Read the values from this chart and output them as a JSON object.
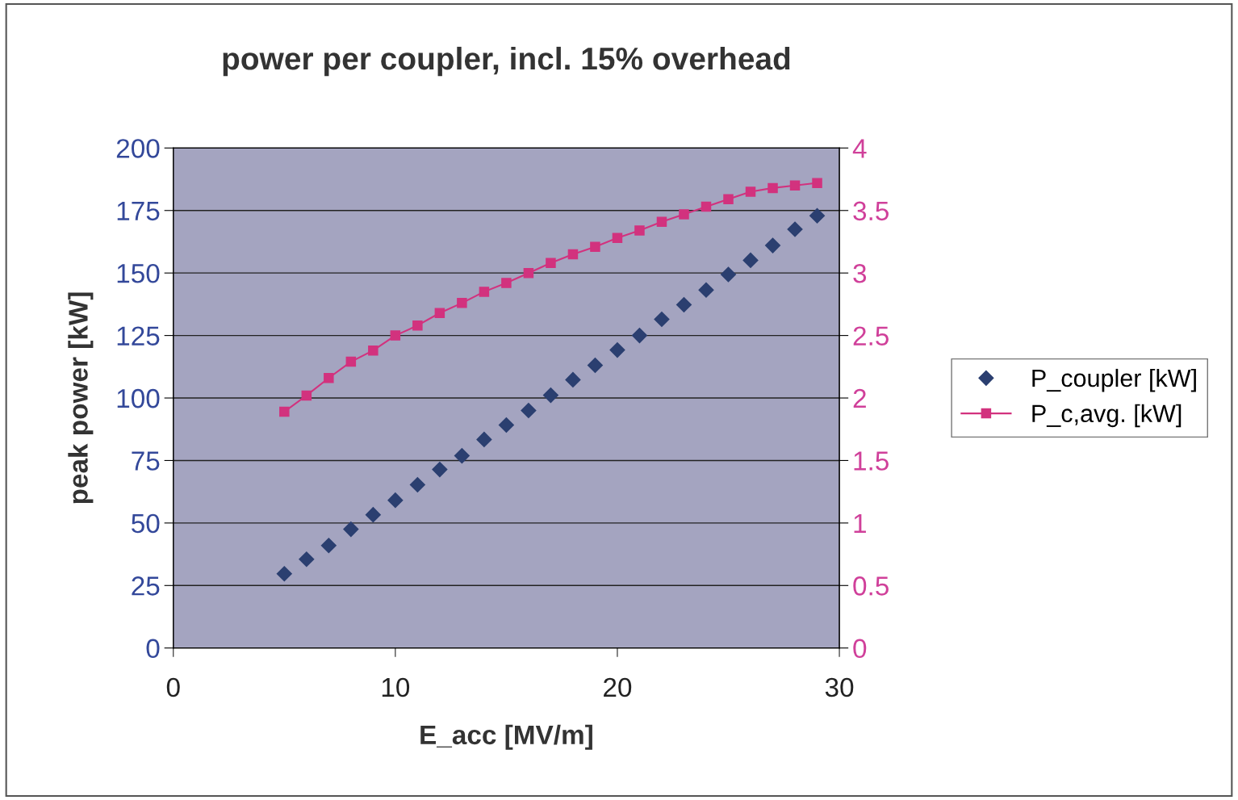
{
  "chart_data": {
    "type": "scatter",
    "title": "power per coupler, incl. 15% overhead",
    "xlabel": "E_acc [MV/m]",
    "ylabel": "peak power [kW]",
    "x": [
      5,
      6,
      7,
      8,
      9,
      10,
      11,
      12,
      13,
      14,
      15,
      16,
      17,
      18,
      19,
      20,
      21,
      22,
      23,
      24,
      25,
      26,
      27,
      28,
      29
    ],
    "series": [
      {
        "name": "P_coupler [kW]",
        "marker": "diamond",
        "color": "#2b3f70",
        "values": [
          29.7,
          35.5,
          41.0,
          47.5,
          53.3,
          59.1,
          65.3,
          71.4,
          76.9,
          83.4,
          89.2,
          95.0,
          101.1,
          107.3,
          113.1,
          119.2,
          125.0,
          131.5,
          137.3,
          143.2,
          149.4,
          155.1,
          161.0,
          167.5,
          172.9
        ]
      },
      {
        "name": "P_c,avg. [kW]",
        "type": "line",
        "marker": "square",
        "line_style": "solid",
        "axis": "y2",
        "color": "#d2327e",
        "values": [
          1.89,
          2.02,
          2.16,
          2.29,
          2.38,
          2.5,
          2.58,
          2.68,
          2.76,
          2.85,
          2.92,
          3.0,
          3.08,
          3.15,
          3.21,
          3.28,
          3.34,
          3.41,
          3.47,
          3.53,
          3.59,
          3.65,
          3.68,
          3.7,
          3.72
        ]
      }
    ],
    "xlim": [
      0,
      30
    ],
    "xticks": [
      0,
      10,
      20,
      30
    ],
    "ylim": [
      0,
      200
    ],
    "yticks": [
      0,
      25,
      50,
      75,
      100,
      125,
      150,
      175,
      200
    ],
    "y2lim": [
      0,
      4
    ],
    "y2ticks": [
      0,
      0.5,
      1,
      1.5,
      2,
      2.5,
      3,
      3.5,
      4
    ],
    "grid": "y",
    "legend": "right"
  }
}
